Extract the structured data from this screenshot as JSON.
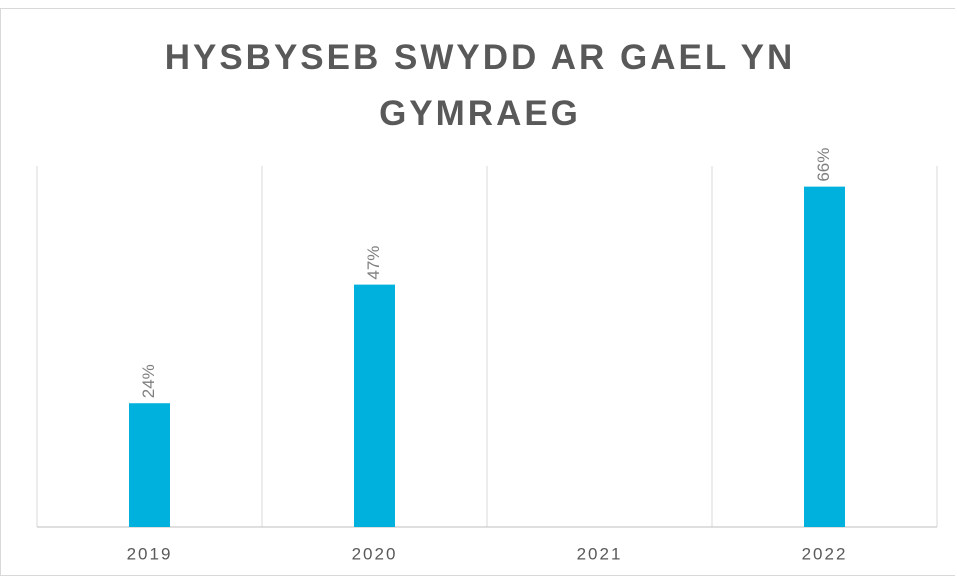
{
  "chart_data": {
    "type": "bar",
    "title": "HYSBYSEB SWYDD AR GAEL YN GYMRAEG",
    "categories": [
      "2019",
      "2020",
      "2021",
      "2022"
    ],
    "values": [
      24,
      47,
      null,
      66
    ],
    "value_labels": [
      "24%",
      "47%",
      null,
      "66%"
    ],
    "color": "#00b0dd",
    "ylim": [
      0,
      70
    ],
    "grid": true
  }
}
